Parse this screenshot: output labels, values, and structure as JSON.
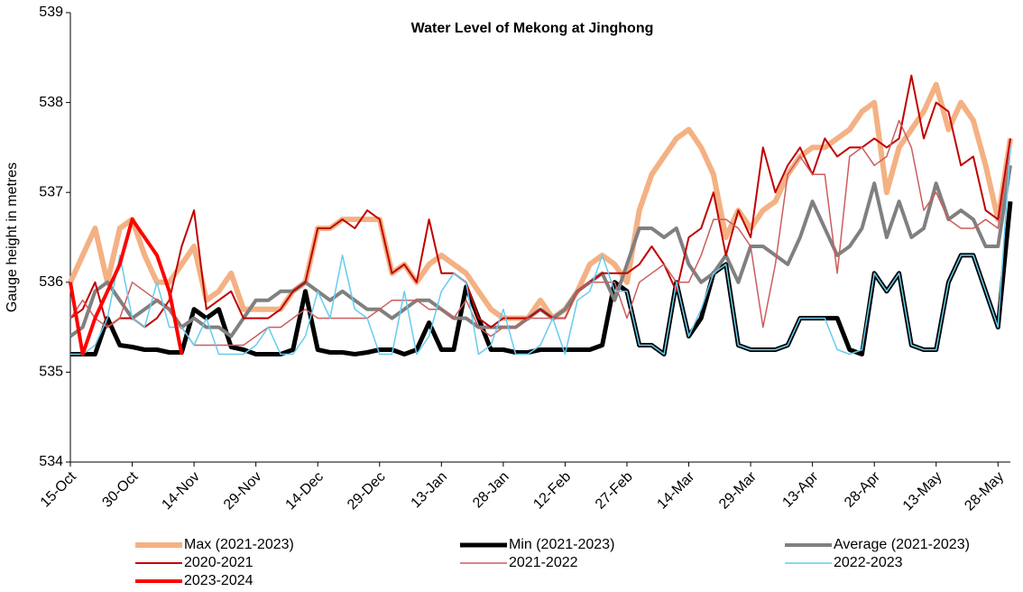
{
  "chart_data": {
    "type": "line",
    "title": "Water Level of Mekong at Jinghong",
    "y_label": "Gauge height in metres",
    "x": [
      0,
      3,
      6,
      9,
      12,
      15,
      18,
      21,
      24,
      27,
      30,
      33,
      36,
      39,
      42,
      45,
      48,
      51,
      54,
      57,
      60,
      63,
      66,
      69,
      72,
      75,
      78,
      81,
      84,
      87,
      90,
      93,
      96,
      99,
      102,
      105,
      108,
      111,
      114,
      117,
      120,
      123,
      126,
      129,
      132,
      135,
      138,
      141,
      144,
      147,
      150,
      153,
      156,
      159,
      162,
      165,
      168,
      171,
      174,
      177,
      180,
      183,
      186,
      189,
      192,
      195,
      198,
      201,
      204,
      207,
      210,
      213,
      216,
      219,
      222,
      225,
      228
    ],
    "xlim": [
      0,
      228
    ],
    "xticks": [
      {
        "value": 0,
        "label": "15-Oct"
      },
      {
        "value": 15,
        "label": "30-Oct"
      },
      {
        "value": 30,
        "label": "14-Nov"
      },
      {
        "value": 45,
        "label": "29-Nov"
      },
      {
        "value": 60,
        "label": "14-Dec"
      },
      {
        "value": 75,
        "label": "29-Dec"
      },
      {
        "value": 90,
        "label": "13-Jan"
      },
      {
        "value": 105,
        "label": "28-Jan"
      },
      {
        "value": 120,
        "label": "12-Feb"
      },
      {
        "value": 135,
        "label": "27-Feb"
      },
      {
        "value": 150,
        "label": "14-Mar"
      },
      {
        "value": 165,
        "label": "29-Mar"
      },
      {
        "value": 180,
        "label": "13-Apr"
      },
      {
        "value": 195,
        "label": "28-Apr"
      },
      {
        "value": 210,
        "label": "13-May"
      },
      {
        "value": 225,
        "label": "28-May"
      }
    ],
    "ylim": [
      534,
      539
    ],
    "yticks": [
      534,
      535,
      536,
      537,
      538,
      539
    ],
    "series": [
      {
        "name": "Max (2021-2023)",
        "color": "#f4b183",
        "values": [
          536.0,
          536.3,
          536.6,
          536.0,
          536.6,
          536.7,
          536.3,
          536.0,
          536.0,
          536.2,
          536.4,
          535.8,
          535.9,
          536.1,
          535.7,
          535.7,
          535.7,
          535.7,
          535.9,
          536.0,
          536.6,
          536.6,
          536.7,
          536.7,
          536.7,
          536.7,
          536.1,
          536.2,
          536.0,
          536.2,
          536.3,
          536.2,
          536.1,
          535.9,
          535.7,
          535.6,
          535.6,
          535.6,
          535.8,
          535.6,
          535.7,
          535.9,
          536.2,
          536.3,
          536.2,
          536.0,
          536.8,
          537.2,
          537.4,
          537.6,
          537.7,
          537.5,
          537.2,
          536.5,
          536.8,
          536.6,
          536.8,
          536.9,
          537.2,
          537.4,
          537.5,
          537.5,
          537.6,
          537.7,
          537.9,
          538.0,
          537.0,
          537.5,
          537.7,
          537.9,
          538.2,
          537.7,
          538.0,
          537.8,
          537.3,
          536.7,
          537.6
        ]
      },
      {
        "name": "Min (2021-2023)",
        "color": "#000000",
        "values": [
          535.2,
          535.2,
          535.2,
          535.6,
          535.3,
          535.28,
          535.25,
          535.25,
          535.22,
          535.22,
          535.7,
          535.6,
          535.7,
          535.28,
          535.25,
          535.2,
          535.2,
          535.2,
          535.25,
          535.9,
          535.25,
          535.22,
          535.22,
          535.2,
          535.22,
          535.25,
          535.25,
          535.2,
          535.25,
          535.55,
          535.25,
          535.25,
          535.95,
          535.6,
          535.25,
          535.25,
          535.22,
          535.22,
          535.25,
          535.25,
          535.25,
          535.25,
          535.25,
          535.3,
          536.0,
          535.9,
          535.3,
          535.3,
          535.2,
          536.0,
          535.4,
          535.6,
          536.1,
          536.2,
          535.3,
          535.25,
          535.25,
          535.25,
          535.3,
          535.6,
          535.6,
          535.6,
          535.6,
          535.25,
          535.2,
          536.1,
          535.9,
          536.1,
          535.3,
          535.25,
          535.25,
          536.0,
          536.3,
          536.3,
          535.9,
          535.5,
          536.9
        ]
      },
      {
        "name": "Average (2021-2023)",
        "color": "#808080",
        "values": [
          535.4,
          535.5,
          535.9,
          536.0,
          535.8,
          535.6,
          535.7,
          535.8,
          535.7,
          535.5,
          535.6,
          535.5,
          535.5,
          535.4,
          535.6,
          535.8,
          535.8,
          535.9,
          535.9,
          536.0,
          535.9,
          535.8,
          535.9,
          535.8,
          535.7,
          535.7,
          535.6,
          535.7,
          535.8,
          535.8,
          535.7,
          535.6,
          535.6,
          535.5,
          535.5,
          535.5,
          535.5,
          535.6,
          535.7,
          535.6,
          535.7,
          535.9,
          536.0,
          536.1,
          535.8,
          536.2,
          536.6,
          536.6,
          536.5,
          536.6,
          536.2,
          536.0,
          536.1,
          536.3,
          536.0,
          536.4,
          536.4,
          536.3,
          536.2,
          536.5,
          536.9,
          536.6,
          536.3,
          536.4,
          536.6,
          537.1,
          536.5,
          536.9,
          536.5,
          536.6,
          537.1,
          536.7,
          536.8,
          536.7,
          536.4,
          536.4,
          537.3
        ]
      },
      {
        "name": "2020-2021",
        "color": "#c00000",
        "values": [
          535.6,
          535.7,
          536.0,
          535.5,
          535.6,
          535.6,
          535.5,
          535.6,
          535.8,
          536.4,
          536.8,
          535.7,
          535.8,
          535.9,
          535.6,
          535.6,
          535.6,
          535.7,
          535.9,
          536.0,
          536.6,
          536.6,
          536.7,
          536.6,
          536.8,
          536.7,
          536.1,
          536.2,
          536.0,
          536.7,
          536.1,
          536.1,
          536.0,
          535.6,
          535.5,
          535.6,
          535.6,
          535.6,
          535.7,
          535.6,
          535.6,
          535.9,
          536.0,
          536.1,
          536.1,
          536.1,
          536.2,
          536.4,
          536.2,
          535.9,
          536.5,
          536.6,
          537.0,
          536.3,
          536.8,
          536.5,
          537.5,
          537.0,
          537.3,
          537.5,
          537.2,
          537.6,
          537.4,
          537.5,
          537.5,
          537.6,
          537.5,
          537.6,
          538.3,
          537.6,
          538.0,
          537.9,
          537.3,
          537.4,
          536.8,
          536.7,
          537.6
        ]
      },
      {
        "name": "2021-2022",
        "color": "#cd5c5c",
        "values": [
          535.6,
          535.8,
          535.6,
          535.5,
          535.6,
          536.0,
          535.9,
          535.8,
          535.7,
          535.5,
          535.3,
          535.3,
          535.3,
          535.3,
          535.3,
          535.4,
          535.5,
          535.5,
          535.6,
          535.7,
          535.6,
          535.6,
          535.6,
          535.6,
          535.6,
          535.7,
          535.8,
          535.8,
          535.8,
          535.7,
          535.7,
          535.6,
          535.8,
          535.5,
          535.4,
          535.5,
          535.5,
          535.6,
          535.6,
          535.6,
          535.6,
          535.9,
          536.0,
          536.0,
          536.0,
          535.6,
          536.0,
          536.1,
          536.2,
          536.0,
          536.0,
          536.3,
          536.7,
          536.7,
          536.6,
          536.4,
          535.5,
          536.2,
          537.2,
          537.4,
          537.2,
          537.2,
          536.1,
          537.4,
          537.5,
          537.3,
          537.4,
          537.8,
          537.5,
          536.8,
          537.0,
          536.7,
          536.6,
          536.6,
          536.7,
          536.6,
          537.5
        ]
      },
      {
        "name": "2022-2023",
        "color": "#66ccee",
        "values": [
          535.2,
          535.2,
          535.3,
          535.6,
          536.3,
          535.6,
          535.5,
          536.0,
          535.5,
          535.5,
          535.3,
          535.6,
          535.2,
          535.2,
          535.2,
          535.3,
          535.5,
          535.2,
          535.2,
          535.4,
          535.9,
          535.6,
          536.3,
          535.7,
          535.6,
          535.2,
          535.2,
          535.9,
          535.2,
          535.4,
          535.9,
          536.1,
          536.0,
          535.2,
          535.3,
          535.7,
          535.2,
          535.2,
          535.3,
          535.6,
          535.2,
          535.8,
          535.9,
          536.3,
          535.9,
          535.9,
          535.3,
          535.3,
          535.2,
          536.0,
          535.4,
          535.7,
          536.1,
          536.2,
          535.3,
          535.25,
          535.25,
          535.25,
          535.3,
          535.6,
          535.6,
          535.6,
          535.25,
          535.2,
          535.25,
          536.1,
          535.9,
          536.1,
          535.3,
          535.25,
          535.25,
          536.0,
          536.3,
          536.3,
          535.9,
          535.5,
          537.5
        ]
      },
      {
        "name": "2023-2024",
        "color": "#ff0000",
        "values": [
          536.0,
          535.2,
          535.6,
          535.9,
          536.2,
          536.7,
          536.5,
          536.3,
          535.9,
          535.2,
          null,
          null,
          null,
          null,
          null,
          null,
          null,
          null,
          null,
          null,
          null,
          null,
          null,
          null,
          null,
          null,
          null,
          null,
          null,
          null,
          null,
          null,
          null,
          null,
          null,
          null,
          null,
          null,
          null,
          null,
          null,
          null,
          null,
          null,
          null,
          null,
          null,
          null,
          null,
          null,
          null,
          null,
          null,
          null,
          null,
          null,
          null,
          null,
          null,
          null,
          null,
          null,
          null,
          null,
          null,
          null,
          null,
          null,
          null,
          null,
          null,
          null,
          null,
          null,
          null,
          null,
          null
        ]
      }
    ]
  }
}
